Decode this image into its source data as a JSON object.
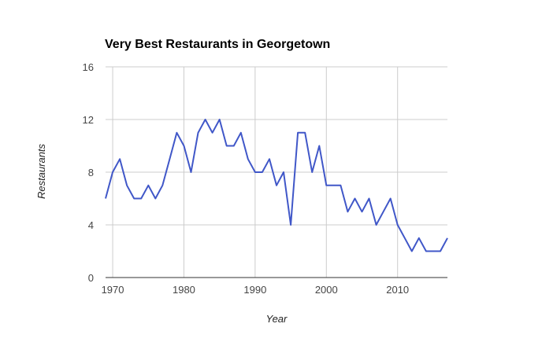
{
  "chart_data": {
    "type": "line",
    "title": "Very Best Restaurants in Georgetown",
    "xlabel": "Year",
    "ylabel": "Restaurants",
    "xlim": [
      1969,
      2017
    ],
    "ylim": [
      0,
      16
    ],
    "xticks": [
      1970,
      1980,
      1990,
      2000,
      2010
    ],
    "yticks": [
      0,
      4,
      8,
      12,
      16
    ],
    "grid": true,
    "line_color": "#4057c8",
    "series": [
      {
        "x": [
          1969,
          1970,
          1971,
          1972,
          1973,
          1974,
          1975,
          1976,
          1977,
          1978,
          1979,
          1980,
          1981,
          1982,
          1983,
          1984,
          1985,
          1986,
          1987,
          1988,
          1989,
          1990,
          1991,
          1992,
          1993,
          1994,
          1995,
          1996,
          1997,
          1998,
          1999,
          2000,
          2001,
          2002,
          2003,
          2004,
          2005,
          2006,
          2007,
          2008,
          2009,
          2010,
          2011,
          2012,
          2013,
          2014,
          2015,
          2016,
          2017
        ],
        "values": [
          6,
          8,
          9,
          7,
          6,
          6,
          7,
          6,
          7,
          9,
          11,
          10,
          8,
          11,
          12,
          11,
          12,
          10,
          10,
          11,
          9,
          8,
          8,
          9,
          7,
          8,
          4,
          11,
          11,
          8,
          10,
          7,
          7,
          7,
          5,
          6,
          5,
          6,
          4,
          5,
          6,
          4,
          3,
          2,
          3,
          2,
          2,
          2,
          3
        ]
      }
    ]
  }
}
